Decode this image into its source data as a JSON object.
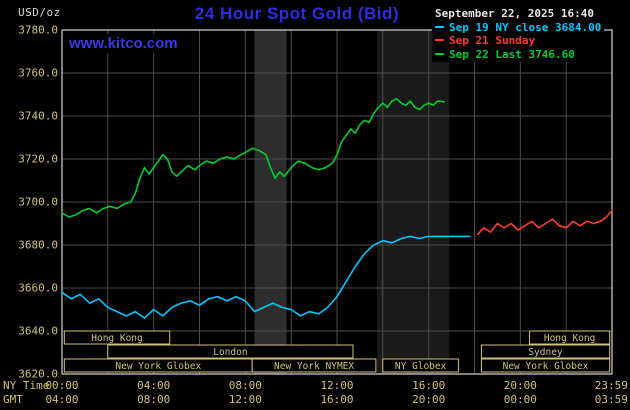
{
  "header": {
    "unit_label": "USD/oz",
    "title": "24 Hour Spot Gold (Bid)",
    "datetime": "September 22, 2025 16:40",
    "watermark": "www.kitco.com",
    "legend": [
      {
        "label": "Sep 19 NY close 3684.00",
        "color": "#00c6ff"
      },
      {
        "label": "Sep 21 Sunday",
        "color": "#ff3b30"
      },
      {
        "label": "Sep 22 Last 3746.60",
        "color": "#00cc33"
      }
    ]
  },
  "colors": {
    "background": "#000000",
    "frame": "#ffffff",
    "axis_text": "#cfc27c",
    "grid": "#4d4d4d",
    "title": "#2e2ee0",
    "watermark": "#3838e8",
    "datetime": "#e6e6e6"
  },
  "chart_data": {
    "type": "line",
    "title": "24 Hour Spot Gold (Bid)",
    "ylabel": "USD/oz",
    "ylim": [
      3620,
      3780
    ],
    "y_tick_step": 20,
    "y_tick_labels": [
      "3780.0",
      "3760.0",
      "3740.0",
      "3720.0",
      "3700.0",
      "3680.0",
      "3660.0",
      "3640.0",
      "3620.0"
    ],
    "x_axis": {
      "row1_label": "NY Time",
      "row2_label": "GMT",
      "tick_hours": [
        0,
        4,
        8,
        12,
        16,
        20,
        23.97
      ],
      "row1_ticks": [
        "00:00",
        "04:00",
        "08:00",
        "12:00",
        "16:00",
        "20:00",
        "23:59"
      ],
      "row2_ticks": [
        "04:00",
        "08:00",
        "12:00",
        "16:00",
        "20:00",
        "00:00",
        "03:59"
      ]
    },
    "grid": {
      "h_step": 20,
      "v_step_hours": 2
    },
    "bands": [
      {
        "from_hour": 8.4,
        "to_hour": 9.8,
        "color": "#2d2d2d"
      },
      {
        "from_hour": 13.75,
        "to_hour": 16.9,
        "color": "#1a1a1a"
      }
    ],
    "series": [
      {
        "name": "Sep 19 NY close",
        "color": "#00c6ff",
        "points": [
          [
            0,
            3658
          ],
          [
            0.4,
            3655
          ],
          [
            0.8,
            3657
          ],
          [
            1.2,
            3653
          ],
          [
            1.6,
            3655
          ],
          [
            2.0,
            3651
          ],
          [
            2.4,
            3649
          ],
          [
            2.8,
            3647
          ],
          [
            3.2,
            3649
          ],
          [
            3.6,
            3646
          ],
          [
            4.0,
            3650
          ],
          [
            4.4,
            3647
          ],
          [
            4.8,
            3651
          ],
          [
            5.2,
            3653
          ],
          [
            5.6,
            3654
          ],
          [
            6.0,
            3652
          ],
          [
            6.4,
            3655
          ],
          [
            6.8,
            3656
          ],
          [
            7.2,
            3654
          ],
          [
            7.6,
            3656
          ],
          [
            8.0,
            3654
          ],
          [
            8.4,
            3649
          ],
          [
            8.8,
            3651
          ],
          [
            9.2,
            3653
          ],
          [
            9.6,
            3651
          ],
          [
            10.0,
            3650
          ],
          [
            10.4,
            3647
          ],
          [
            10.8,
            3649
          ],
          [
            11.2,
            3648
          ],
          [
            11.6,
            3651
          ],
          [
            12.0,
            3656
          ],
          [
            12.4,
            3663
          ],
          [
            12.8,
            3670
          ],
          [
            13.2,
            3676
          ],
          [
            13.6,
            3680
          ],
          [
            14.0,
            3682
          ],
          [
            14.4,
            3681
          ],
          [
            14.8,
            3683
          ],
          [
            15.2,
            3684
          ],
          [
            15.6,
            3683
          ],
          [
            16.0,
            3684
          ],
          [
            16.5,
            3684
          ],
          [
            17.0,
            3684
          ],
          [
            17.8,
            3684
          ]
        ]
      },
      {
        "name": "Sep 21 Sunday",
        "color": "#ff3b30",
        "points": [
          [
            18.15,
            3685
          ],
          [
            18.4,
            3688
          ],
          [
            18.7,
            3686
          ],
          [
            19.0,
            3690
          ],
          [
            19.3,
            3688
          ],
          [
            19.6,
            3690
          ],
          [
            19.9,
            3687
          ],
          [
            20.2,
            3689
          ],
          [
            20.5,
            3691
          ],
          [
            20.8,
            3688
          ],
          [
            21.1,
            3690
          ],
          [
            21.4,
            3692
          ],
          [
            21.7,
            3689
          ],
          [
            22.0,
            3688
          ],
          [
            22.3,
            3691
          ],
          [
            22.6,
            3689
          ],
          [
            22.9,
            3691
          ],
          [
            23.2,
            3690
          ],
          [
            23.5,
            3691
          ],
          [
            23.75,
            3693
          ],
          [
            24,
            3696
          ]
        ]
      },
      {
        "name": "Sep 22 Last",
        "color": "#00cc33",
        "points": [
          [
            0,
            3695
          ],
          [
            0.3,
            3693
          ],
          [
            0.6,
            3694
          ],
          [
            0.9,
            3696
          ],
          [
            1.2,
            3697
          ],
          [
            1.5,
            3695
          ],
          [
            1.8,
            3697
          ],
          [
            2.1,
            3698
          ],
          [
            2.4,
            3697
          ],
          [
            2.7,
            3699
          ],
          [
            3.0,
            3700
          ],
          [
            3.2,
            3704
          ],
          [
            3.4,
            3711
          ],
          [
            3.6,
            3716
          ],
          [
            3.8,
            3713
          ],
          [
            4.0,
            3716
          ],
          [
            4.2,
            3719
          ],
          [
            4.4,
            3722
          ],
          [
            4.6,
            3720
          ],
          [
            4.8,
            3714
          ],
          [
            5.0,
            3712
          ],
          [
            5.2,
            3714
          ],
          [
            5.5,
            3717
          ],
          [
            5.8,
            3715
          ],
          [
            6.0,
            3717
          ],
          [
            6.3,
            3719
          ],
          [
            6.6,
            3718
          ],
          [
            6.9,
            3720
          ],
          [
            7.2,
            3721
          ],
          [
            7.5,
            3720
          ],
          [
            7.8,
            3722
          ],
          [
            8.0,
            3723
          ],
          [
            8.3,
            3725
          ],
          [
            8.6,
            3724
          ],
          [
            8.9,
            3722
          ],
          [
            9.1,
            3716
          ],
          [
            9.3,
            3711
          ],
          [
            9.5,
            3714
          ],
          [
            9.7,
            3712
          ],
          [
            10.0,
            3716
          ],
          [
            10.3,
            3719
          ],
          [
            10.6,
            3718
          ],
          [
            10.9,
            3716
          ],
          [
            11.2,
            3715
          ],
          [
            11.5,
            3716
          ],
          [
            11.8,
            3718
          ],
          [
            12.0,
            3722
          ],
          [
            12.2,
            3728
          ],
          [
            12.4,
            3731
          ],
          [
            12.6,
            3734
          ],
          [
            12.8,
            3732
          ],
          [
            13.0,
            3736
          ],
          [
            13.2,
            3738
          ],
          [
            13.4,
            3737
          ],
          [
            13.6,
            3741
          ],
          [
            13.8,
            3744
          ],
          [
            14.0,
            3746
          ],
          [
            14.2,
            3744
          ],
          [
            14.4,
            3747
          ],
          [
            14.6,
            3748
          ],
          [
            14.8,
            3746
          ],
          [
            15.0,
            3745
          ],
          [
            15.2,
            3747
          ],
          [
            15.4,
            3744
          ],
          [
            15.6,
            3743
          ],
          [
            15.8,
            3745
          ],
          [
            16.0,
            3746
          ],
          [
            16.2,
            3745
          ],
          [
            16.4,
            3747
          ],
          [
            16.67,
            3746.6
          ]
        ]
      }
    ],
    "sessions": {
      "boxes": [
        {
          "row": 0,
          "label": "Hong Kong",
          "from_hour": 0.1,
          "to_hour": 4.7
        },
        {
          "row": 0,
          "label": "Hong Kong",
          "from_hour": 20.4,
          "to_hour": 23.9
        },
        {
          "row": 1,
          "label": "London",
          "from_hour": 2.0,
          "to_hour": 12.7
        },
        {
          "row": 1,
          "label": "Sydney",
          "from_hour": 18.3,
          "to_hour": 23.9
        },
        {
          "row": 2,
          "label": "New York Globex",
          "from_hour": 0.1,
          "to_hour": 8.3
        },
        {
          "row": 2,
          "label": "New York NYMEX",
          "from_hour": 8.3,
          "to_hour": 13.7
        },
        {
          "row": 2,
          "label": "NY Globex",
          "from_hour": 14.0,
          "to_hour": 17.3
        },
        {
          "row": 2,
          "label": "New York Globex",
          "from_hour": 18.3,
          "to_hour": 23.9
        }
      ]
    }
  }
}
